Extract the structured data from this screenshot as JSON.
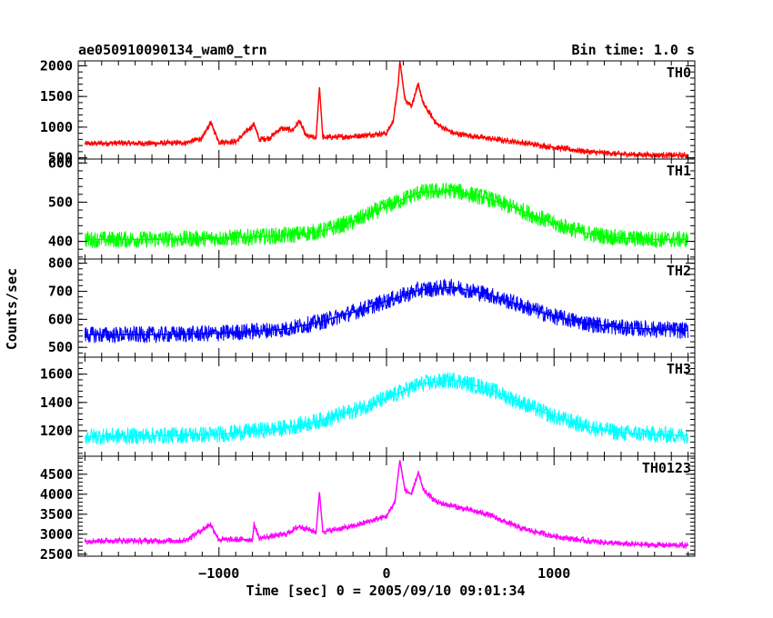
{
  "header": {
    "title": "ae050910090134_wam0_trn",
    "bin_time": "Bin time: 1.0 s"
  },
  "chart_data": {
    "type": "line",
    "xlabel": "Time [sec] 0 = 2005/09/10 09:01:34",
    "ylabel": "Counts/sec",
    "xlim": [
      -1840,
      1840
    ],
    "x_ticks": [
      -1000,
      0,
      1000
    ],
    "x_tick_labels": [
      "−1000",
      "0",
      "1000"
    ],
    "grid": false,
    "panels": [
      {
        "name": "TH0",
        "color": "#ff0000",
        "ylim": [
          480,
          2080
        ],
        "y_ticks": [
          500,
          1000,
          1500,
          2000
        ],
        "y_tick_labels": [
          "500",
          "1000",
          "1500",
          "2000"
        ],
        "points": [
          [
            -1800,
            730
          ],
          [
            -1600,
            740
          ],
          [
            -1400,
            735
          ],
          [
            -1200,
            745
          ],
          [
            -1100,
            820
          ],
          [
            -1050,
            1080
          ],
          [
            -1000,
            760
          ],
          [
            -900,
            760
          ],
          [
            -790,
            1050
          ],
          [
            -760,
            800
          ],
          [
            -700,
            820
          ],
          [
            -630,
            980
          ],
          [
            -560,
            950
          ],
          [
            -520,
            1100
          ],
          [
            -480,
            860
          ],
          [
            -420,
            820
          ],
          [
            -400,
            1650
          ],
          [
            -380,
            830
          ],
          [
            -200,
            850
          ],
          [
            0,
            900
          ],
          [
            40,
            1100
          ],
          [
            70,
            1700
          ],
          [
            80,
            2080
          ],
          [
            110,
            1450
          ],
          [
            150,
            1350
          ],
          [
            190,
            1700
          ],
          [
            220,
            1380
          ],
          [
            300,
            1050
          ],
          [
            400,
            900
          ],
          [
            600,
            820
          ],
          [
            800,
            750
          ],
          [
            1000,
            670
          ],
          [
            1200,
            600
          ],
          [
            1400,
            560
          ],
          [
            1600,
            545
          ],
          [
            1800,
            540
          ]
        ]
      },
      {
        "name": "TH1",
        "color": "#00ff00",
        "ylim": [
          355,
          610
        ],
        "y_ticks": [
          400,
          500,
          600
        ],
        "y_tick_labels": [
          "400",
          "500",
          "600"
        ],
        "points": [
          [
            -1800,
            405
          ],
          [
            -1400,
            405
          ],
          [
            -1000,
            408
          ],
          [
            -600,
            415
          ],
          [
            -400,
            425
          ],
          [
            -200,
            450
          ],
          [
            0,
            490
          ],
          [
            200,
            525
          ],
          [
            400,
            530
          ],
          [
            600,
            510
          ],
          [
            800,
            480
          ],
          [
            1000,
            445
          ],
          [
            1200,
            420
          ],
          [
            1400,
            408
          ],
          [
            1600,
            405
          ],
          [
            1800,
            405
          ]
        ]
      },
      {
        "name": "TH2",
        "color": "#0000ff",
        "ylim": [
          465,
          815
        ],
        "y_ticks": [
          500,
          600,
          700,
          800
        ],
        "y_tick_labels": [
          "500",
          "600",
          "700",
          "800"
        ],
        "points": [
          [
            -1800,
            545
          ],
          [
            -1400,
            545
          ],
          [
            -1000,
            550
          ],
          [
            -600,
            565
          ],
          [
            -400,
            590
          ],
          [
            -200,
            625
          ],
          [
            0,
            665
          ],
          [
            200,
            705
          ],
          [
            400,
            715
          ],
          [
            600,
            690
          ],
          [
            800,
            650
          ],
          [
            1000,
            610
          ],
          [
            1200,
            585
          ],
          [
            1400,
            570
          ],
          [
            1600,
            565
          ],
          [
            1800,
            560
          ]
        ]
      },
      {
        "name": "TH3",
        "color": "#00ffff",
        "ylim": [
          1020,
          1720
        ],
        "y_ticks": [
          1200,
          1400,
          1600
        ],
        "y_tick_labels": [
          "1200",
          "1400",
          "1600"
        ],
        "points": [
          [
            -1800,
            1160
          ],
          [
            -1400,
            1165
          ],
          [
            -1000,
            1175
          ],
          [
            -600,
            1220
          ],
          [
            -400,
            1270
          ],
          [
            -200,
            1340
          ],
          [
            0,
            1430
          ],
          [
            200,
            1530
          ],
          [
            400,
            1560
          ],
          [
            600,
            1500
          ],
          [
            800,
            1400
          ],
          [
            1000,
            1300
          ],
          [
            1200,
            1230
          ],
          [
            1400,
            1185
          ],
          [
            1600,
            1175
          ],
          [
            1800,
            1165
          ]
        ]
      },
      {
        "name": "TH0123",
        "color": "#ff00ff",
        "ylim": [
          2450,
          4950
        ],
        "y_ticks": [
          2500,
          3000,
          3500,
          4000,
          4500
        ],
        "y_tick_labels": [
          "2500",
          "3000",
          "3500",
          "4000",
          "4500"
        ],
        "points": [
          [
            -1800,
            2830
          ],
          [
            -1600,
            2840
          ],
          [
            -1400,
            2830
          ],
          [
            -1200,
            2840
          ],
          [
            -1050,
            3250
          ],
          [
            -1000,
            2860
          ],
          [
            -800,
            2870
          ],
          [
            -790,
            3250
          ],
          [
            -760,
            2900
          ],
          [
            -600,
            3000
          ],
          [
            -520,
            3200
          ],
          [
            -420,
            3050
          ],
          [
            -400,
            4050
          ],
          [
            -380,
            3060
          ],
          [
            -200,
            3200
          ],
          [
            0,
            3450
          ],
          [
            50,
            3800
          ],
          [
            80,
            4850
          ],
          [
            110,
            4100
          ],
          [
            150,
            4000
          ],
          [
            190,
            4550
          ],
          [
            220,
            4100
          ],
          [
            300,
            3800
          ],
          [
            400,
            3700
          ],
          [
            600,
            3500
          ],
          [
            800,
            3150
          ],
          [
            1000,
            2950
          ],
          [
            1200,
            2830
          ],
          [
            1400,
            2760
          ],
          [
            1600,
            2730
          ],
          [
            1800,
            2720
          ]
        ]
      }
    ]
  }
}
